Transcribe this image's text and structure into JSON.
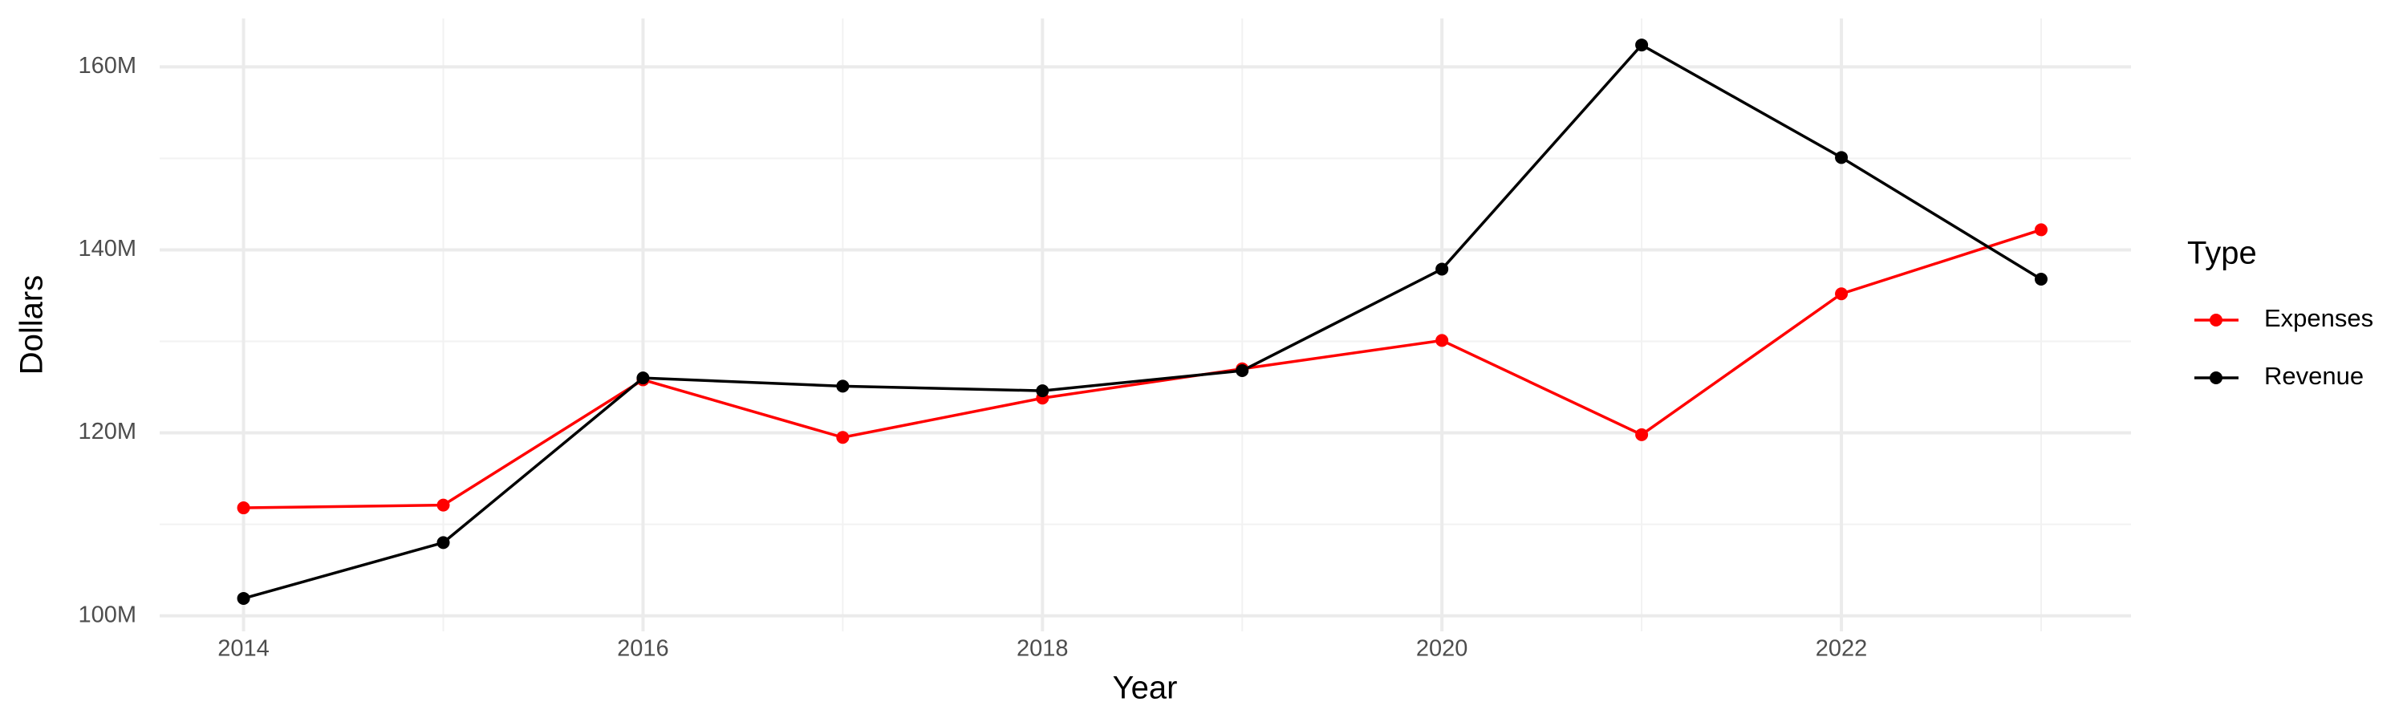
{
  "chart_data": {
    "type": "line",
    "x_label": "Year",
    "y_label": "Dollars",
    "legend_title": "Type",
    "x": [
      2014,
      2015,
      2016,
      2017,
      2018,
      2019,
      2020,
      2021,
      2022,
      2023
    ],
    "series": [
      {
        "name": "Expenses",
        "color": "#ff0000",
        "values": [
          111800000,
          112100000,
          125800000,
          119500000,
          123800000,
          127000000,
          130100000,
          119800000,
          135200000,
          142200000
        ]
      },
      {
        "name": "Revenue",
        "color": "#000000",
        "values": [
          101900000,
          108000000,
          126000000,
          125100000,
          124600000,
          126800000,
          137900000,
          162400000,
          150100000,
          136800000
        ]
      }
    ],
    "xlim": [
      2013.58,
      2023.45
    ],
    "xticks": [
      2014,
      2016,
      2018,
      2020,
      2022
    ],
    "minor_xticks": [
      2015,
      2017,
      2019,
      2021,
      2023
    ],
    "ylim": [
      98300000,
      165300000
    ],
    "yticks": [
      {
        "value": 100000000,
        "label": "100M"
      },
      {
        "value": 120000000,
        "label": "120M"
      },
      {
        "value": 140000000,
        "label": "140M"
      },
      {
        "value": 160000000,
        "label": "160M"
      }
    ],
    "minor_yticks": [
      110000000,
      130000000,
      150000000
    ],
    "grid": true,
    "legend": "right"
  }
}
